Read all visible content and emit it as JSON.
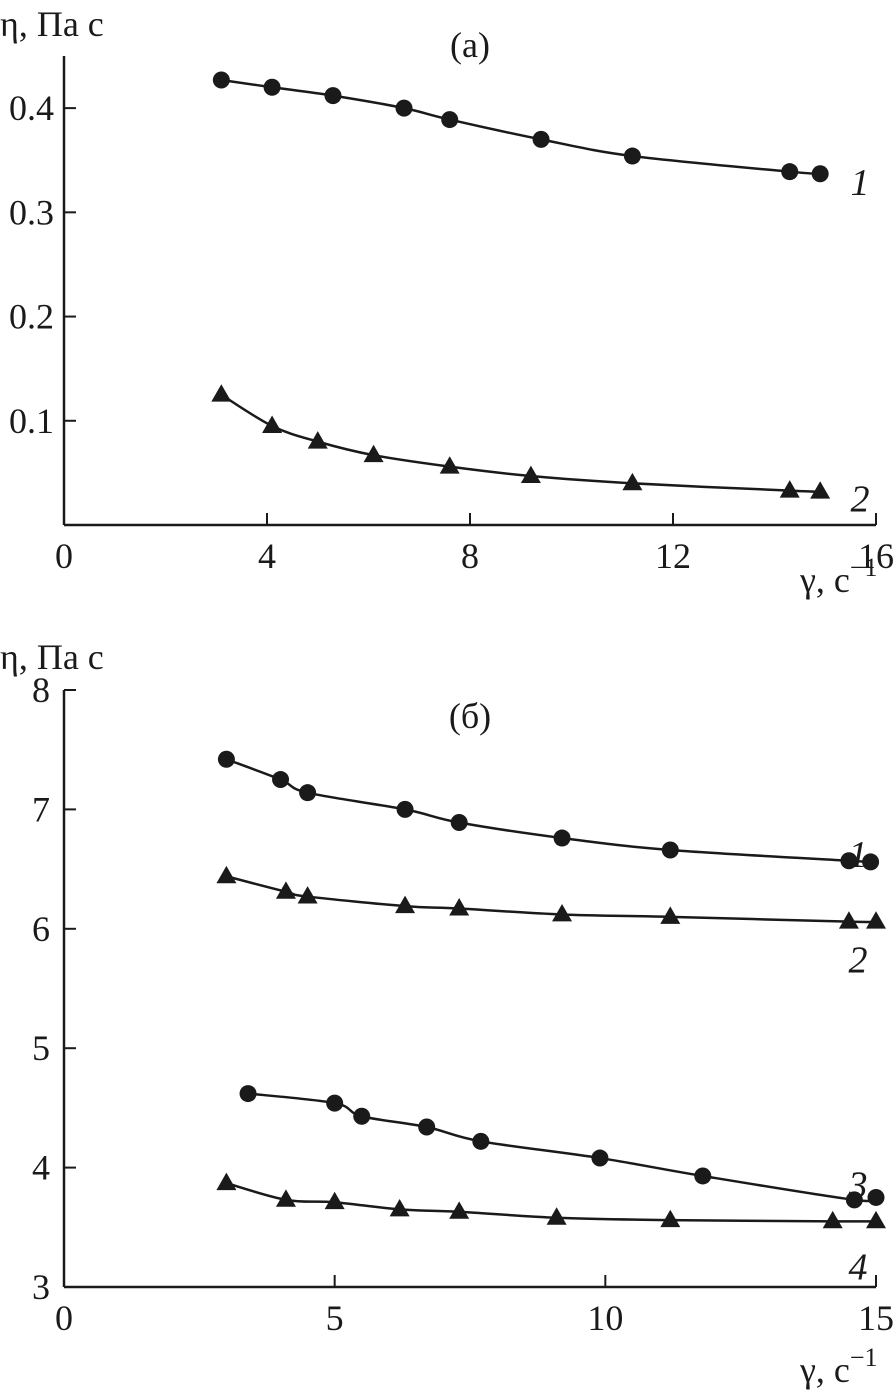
{
  "chart_data": [
    {
      "type": "line",
      "title": "(а)",
      "ylabel": "η, Па с",
      "xlabel": "γ, с",
      "xlabel_exp": "−1",
      "xlim": [
        0,
        16
      ],
      "ylim": [
        0,
        0.45
      ],
      "xticks": [
        0,
        4,
        8,
        12,
        16
      ],
      "xtick_labels": [
        "0",
        "4",
        "8",
        "12",
        "16"
      ],
      "yticks": [
        0.1,
        0.2,
        0.3,
        0.4
      ],
      "ytick_labels": [
        "0.1",
        "0.2",
        "0.3",
        "0.4"
      ],
      "grid": false,
      "series": [
        {
          "name": "1",
          "marker": "circle",
          "x": [
            3.1,
            4.1,
            5.3,
            6.7,
            7.6,
            9.4,
            11.2,
            14.3,
            14.9
          ],
          "y": [
            0.427,
            0.42,
            0.412,
            0.4,
            0.389,
            0.37,
            0.354,
            0.339,
            0.337
          ]
        },
        {
          "name": "2",
          "marker": "triangle",
          "x": [
            3.1,
            4.1,
            5.0,
            6.1,
            7.6,
            9.2,
            11.2,
            14.3,
            14.9
          ],
          "y": [
            0.125,
            0.095,
            0.08,
            0.067,
            0.056,
            0.047,
            0.04,
            0.033,
            0.032
          ]
        }
      ]
    },
    {
      "type": "line",
      "title": "(б)",
      "ylabel": "η, Па с",
      "xlabel": "γ, с",
      "xlabel_exp": "−1",
      "xlim": [
        0,
        15
      ],
      "ylim": [
        3,
        8
      ],
      "xticks": [
        0,
        5,
        10,
        15
      ],
      "xtick_labels": [
        "0",
        "5",
        "10",
        "15"
      ],
      "yticks": [
        3,
        4,
        5,
        6,
        7,
        8
      ],
      "ytick_labels": [
        "3",
        "4",
        "5",
        "6",
        "7",
        "8"
      ],
      "grid": false,
      "series": [
        {
          "name": "1",
          "marker": "circle",
          "x": [
            3.0,
            4.0,
            4.5,
            6.3,
            7.3,
            9.2,
            11.2,
            14.5,
            14.9
          ],
          "y": [
            7.42,
            7.25,
            7.14,
            7.0,
            6.89,
            6.76,
            6.66,
            6.57,
            6.56
          ]
        },
        {
          "name": "2",
          "marker": "triangle",
          "x": [
            3.0,
            4.1,
            4.5,
            6.3,
            7.3,
            9.2,
            11.2,
            14.5,
            15.0
          ],
          "y": [
            6.44,
            6.31,
            6.27,
            6.19,
            6.17,
            6.12,
            6.1,
            6.06,
            6.06
          ]
        },
        {
          "name": "3",
          "marker": "circle",
          "x": [
            3.4,
            5.0,
            5.5,
            6.7,
            7.7,
            9.9,
            11.8,
            14.6,
            15.0
          ],
          "y": [
            4.62,
            4.54,
            4.43,
            4.34,
            4.22,
            4.08,
            3.93,
            3.73,
            3.75
          ]
        },
        {
          "name": "4",
          "marker": "triangle",
          "x": [
            3.0,
            4.1,
            5.0,
            6.2,
            7.3,
            9.1,
            11.2,
            14.2,
            15.0
          ],
          "y": [
            3.87,
            3.73,
            3.71,
            3.65,
            3.63,
            3.58,
            3.56,
            3.55,
            3.55
          ]
        }
      ]
    }
  ]
}
